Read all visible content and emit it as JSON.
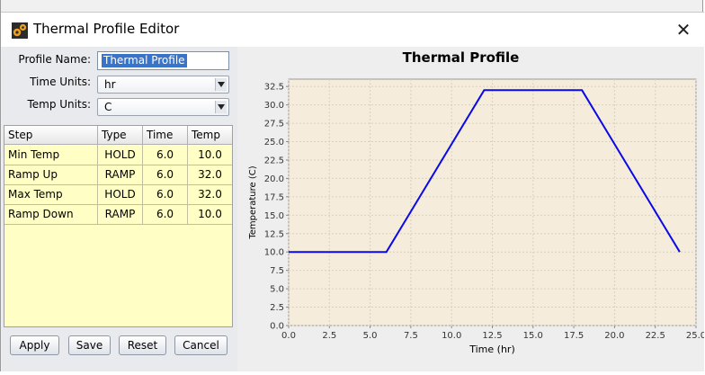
{
  "window": {
    "title": "Thermal Profile Editor",
    "close_symbol": "✕"
  },
  "form": {
    "profile_name_label": "Profile Name:",
    "profile_name_value": "Thermal Profile",
    "time_units_label": "Time Units:",
    "time_units_value": "hr",
    "temp_units_label": "Temp Units:",
    "temp_units_value": "C"
  },
  "table": {
    "headers": [
      "Step",
      "Type",
      "Time",
      "Temp"
    ],
    "rows": [
      {
        "step": "Min Temp",
        "type": "HOLD",
        "time": "6.0",
        "temp": "10.0"
      },
      {
        "step": "Ramp Up",
        "type": "RAMP",
        "time": "6.0",
        "temp": "32.0"
      },
      {
        "step": "Max Temp",
        "type": "HOLD",
        "time": "6.0",
        "temp": "32.0"
      },
      {
        "step": "Ramp Down",
        "type": "RAMP",
        "time": "6.0",
        "temp": "10.0"
      }
    ]
  },
  "buttons": {
    "apply": "Apply",
    "save": "Save",
    "reset": "Reset",
    "cancel": "Cancel"
  },
  "colors": {
    "plot_bg": "#f5ecdc",
    "line": "#0a0ae6",
    "table_bg": "#ffffc5"
  },
  "chart_data": {
    "type": "line",
    "title": "Thermal Profile",
    "xlabel": "Time (hr)",
    "ylabel": "Temperature (C)",
    "xlim": [
      0,
      25
    ],
    "ylim": [
      0,
      33.5
    ],
    "xticks": [
      "0.0",
      "2.5",
      "5.0",
      "7.5",
      "10.0",
      "12.5",
      "15.0",
      "17.5",
      "20.0",
      "22.5",
      "25.0"
    ],
    "yticks": [
      "0.0",
      "2.5",
      "5.0",
      "7.5",
      "10.0",
      "12.5",
      "15.0",
      "17.5",
      "20.0",
      "22.5",
      "25.0",
      "27.5",
      "30.0",
      "32.5"
    ],
    "grid": true,
    "series": [
      {
        "x": [
          0,
          6,
          12,
          18,
          24
        ],
        "y": [
          10,
          10,
          32,
          32,
          10
        ]
      }
    ]
  }
}
